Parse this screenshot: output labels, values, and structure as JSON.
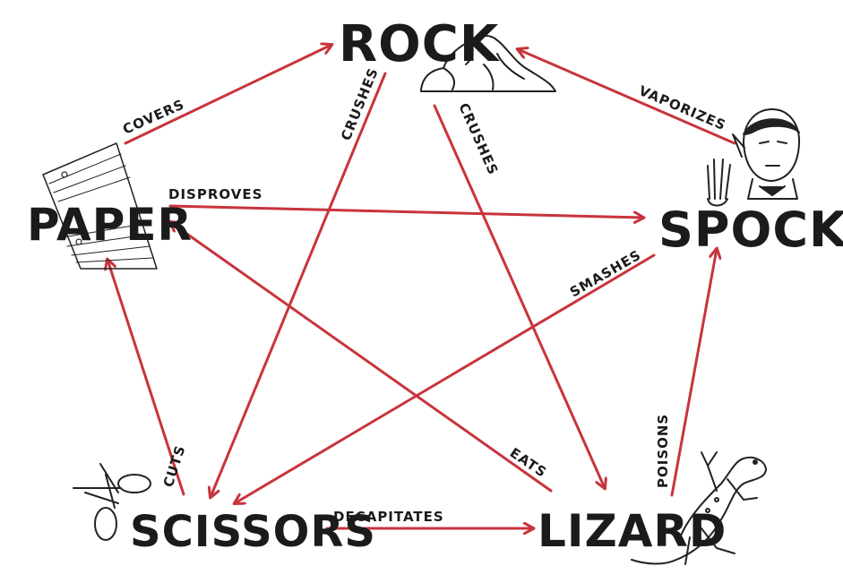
{
  "colors": {
    "arrow": "#c8343b",
    "ink": "#1b1b1b",
    "background": "#ffffff"
  },
  "nodes": {
    "rock": "ROCK",
    "paper": "PAPER",
    "spock": "SPOCK",
    "scissors": "SCISSORS",
    "lizard": "LIZARD"
  },
  "edges": {
    "covers": "COVERS",
    "crushes_scissors": "CRUSHES",
    "crushes_lizard": "CRUSHES",
    "vaporizes": "VAPORIZES",
    "disproves": "DISPROVES",
    "smashes": "SMASHES",
    "cuts": "CUTS",
    "eats": "EATS",
    "poisons": "POISONS",
    "decapitates": "DECAPITATES"
  },
  "icons": [
    "rock-sketch-icon",
    "paper-sketch-icon",
    "spock-sketch-icon",
    "scissors-sketch-icon",
    "lizard-sketch-icon"
  ]
}
